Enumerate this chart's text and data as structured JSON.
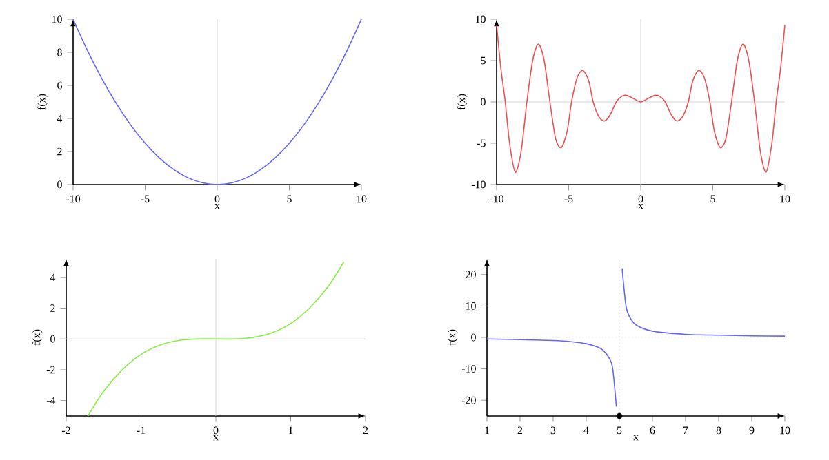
{
  "chart_data": [
    {
      "type": "line",
      "xlabel": "x",
      "ylabel": "f(x)",
      "xlim": [
        -10,
        10
      ],
      "ylim": [
        0,
        10
      ],
      "xticks": [
        -10,
        -5,
        0,
        5,
        10
      ],
      "yticks": [
        0,
        2,
        4,
        6,
        8,
        10
      ],
      "grid": false,
      "series": [
        {
          "color": "#6666ff",
          "x": [
            -10,
            -9,
            -8,
            -7,
            -6,
            -5,
            -4,
            -3,
            -2,
            -1,
            0,
            1,
            2,
            3,
            4,
            5,
            6,
            7,
            8,
            9,
            10
          ],
          "values": [
            10,
            8.1,
            6.4,
            4.9,
            3.6,
            2.5,
            1.6,
            0.9,
            0.4,
            0.1,
            0,
            0.1,
            0.4,
            0.9,
            1.6,
            2.5,
            3.6,
            4.9,
            6.4,
            8.1,
            10
          ]
        }
      ],
      "ref_lines": [
        {
          "axis": "x",
          "value": 0,
          "color": "#cccccc"
        }
      ]
    },
    {
      "type": "line",
      "xlabel": "x",
      "ylabel": "f(x)",
      "xlim": [
        -10,
        10
      ],
      "ylim": [
        -10,
        10
      ],
      "xticks": [
        -10,
        -5,
        0,
        5,
        10
      ],
      "yticks": [
        -10,
        -5,
        0,
        5,
        10
      ],
      "grid": false,
      "series": [
        {
          "color": "#f05050",
          "x": [
            -10,
            -9.7,
            -9.4,
            -9.1,
            -8.7,
            -8.3,
            -7.9,
            -7.5,
            -7.1,
            -6.7,
            -6.3,
            -5.9,
            -5.5,
            -5.1,
            -4.8,
            -4.4,
            -4,
            -3.6,
            -3.3,
            -2.9,
            -2.5,
            -2.1,
            -1.7,
            -1.3,
            -1,
            -0.6,
            0,
            0.6,
            1,
            1.3,
            1.7,
            2.1,
            2.5,
            2.9,
            3.3,
            3.6,
            4,
            4.4,
            4.8,
            5.1,
            5.5,
            5.9,
            6.3,
            6.7,
            7.1,
            7.5,
            7.9,
            8.3,
            8.7,
            9.1,
            9.4,
            9.7,
            10
          ],
          "values": [
            9.3,
            4,
            0,
            -5,
            -8.5,
            -6,
            0,
            5,
            7,
            5,
            0,
            -4.5,
            -5.5,
            -3.5,
            0,
            3,
            3.8,
            2.5,
            0,
            -1.8,
            -2.3,
            -1.5,
            0,
            0.7,
            0.8,
            0.5,
            0,
            0.5,
            0.8,
            0.7,
            0,
            -1.5,
            -2.3,
            -1.8,
            0,
            2.5,
            3.8,
            3,
            0,
            -3.5,
            -5.5,
            -4.5,
            0,
            5,
            7,
            5,
            0,
            -6,
            -8.5,
            -5,
            0,
            4,
            9.3
          ]
        }
      ],
      "ref_lines": [
        {
          "axis": "x",
          "value": 0,
          "color": "#cccccc"
        },
        {
          "axis": "y",
          "value": 0,
          "color": "#cccccc"
        }
      ]
    },
    {
      "type": "line",
      "xlabel": "x",
      "ylabel": "f(x)",
      "xlim": [
        -2,
        2
      ],
      "ylim": [
        -5,
        5.2
      ],
      "xticks": [
        -2,
        -1,
        0,
        1,
        2
      ],
      "yticks": [
        -4,
        -2,
        0,
        2,
        4
      ],
      "grid": false,
      "series": [
        {
          "color": "#88ee44",
          "x": [
            -1.71,
            -1.5,
            -1.25,
            -1,
            -0.75,
            -0.5,
            -0.25,
            0,
            0.25,
            0.5,
            0.75,
            1,
            1.25,
            1.5,
            1.71
          ],
          "values": [
            -5,
            -3.4,
            -2,
            -1,
            -0.4,
            -0.1,
            0,
            0,
            0,
            0.1,
            0.4,
            1,
            2,
            3.4,
            5
          ]
        }
      ],
      "ref_lines": [
        {
          "axis": "x",
          "value": 0,
          "color": "#cccccc"
        },
        {
          "axis": "y",
          "value": 0,
          "color": "#cccccc"
        }
      ]
    },
    {
      "type": "line",
      "xlabel": "x",
      "ylabel": "f(x)",
      "xlim": [
        1,
        10
      ],
      "ylim": [
        -25,
        25
      ],
      "xticks": [
        1,
        2,
        3,
        4,
        5,
        6,
        7,
        8,
        9,
        10
      ],
      "yticks": [
        -20,
        -10,
        0,
        10,
        20
      ],
      "grid": false,
      "series": [
        {
          "color": "#6666ff",
          "x": [
            1,
            2,
            3,
            3.5,
            4,
            4.3,
            4.5,
            4.7,
            4.8,
            4.91
          ],
          "values": [
            -0.5,
            -0.7,
            -1,
            -1.3,
            -2,
            -2.9,
            -4,
            -6.7,
            -10,
            -22
          ]
        },
        {
          "color": "#6666ff",
          "x": [
            5.09,
            5.1,
            5.2,
            5.3,
            5.5,
            6,
            7,
            8,
            9,
            10
          ],
          "values": [
            22,
            20,
            10,
            6.7,
            4,
            2,
            1,
            0.7,
            0.5,
            0.4
          ]
        },
        {
          "type": "scatter",
          "color": "#000000",
          "marker": "circle",
          "x": [
            5
          ],
          "values": [
            -25
          ]
        }
      ],
      "ref_lines": [
        {
          "axis": "x",
          "value": 5,
          "color": "#aaaaaa",
          "line_style": "dotted"
        },
        {
          "axis": "y",
          "value": 0,
          "color": "#cccccc",
          "line_style": "dotted"
        }
      ]
    }
  ]
}
